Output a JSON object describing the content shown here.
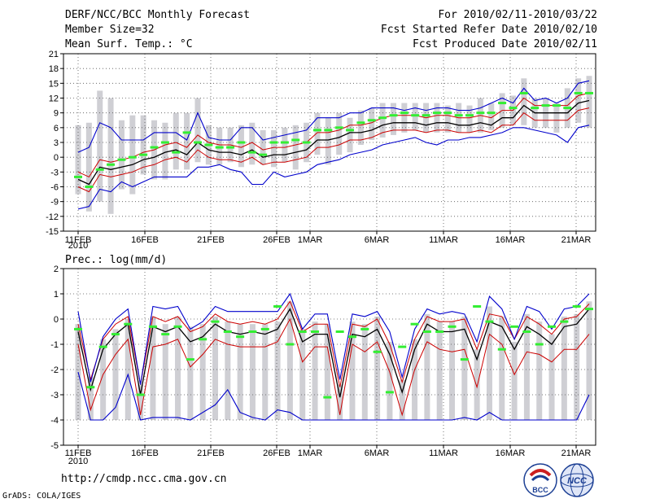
{
  "header": {
    "title": "DERF/NCC/BCC Monthly Forecast",
    "member_size": "Member Size=32",
    "variable": "Mean Surf. Temp.: °C",
    "period": "For 2010/02/11-2010/03/22",
    "refer_date": "Fcst Started Refer Date 2010/02/10",
    "produced_date": "Fcst Produced Date 2010/02/11"
  },
  "footer": {
    "url": "http://cmdp.ncc.cma.gov.cn",
    "credit": "GrADS: COLA/IGES",
    "logo_left_text": "BCC",
    "logo_right_text": "NCC"
  },
  "colors": {
    "box": "#cfcfd4",
    "mean": "#000000",
    "band": "#cc0000",
    "envelope": "#0000cc",
    "marker": "#33ee33",
    "grid": "#555555"
  },
  "chart_data": [
    {
      "type": "line",
      "title": "Mean Surf. Temp.: °C",
      "x_labels": [
        "11FEB",
        "16FEB",
        "21FEB",
        "26FEB",
        "1MAR",
        "6MAR",
        "11MAR",
        "16MAR",
        "21MAR"
      ],
      "x_year_label": "2010",
      "ylim": [
        -15,
        21
      ],
      "yticks": [
        -15,
        -12,
        -9,
        -6,
        -3,
        0,
        3,
        6,
        9,
        12,
        15,
        18,
        21
      ],
      "series": [
        {
          "name": "ensemble mean",
          "values": [
            -4.5,
            -5.5,
            -2,
            -2.5,
            -2,
            -1.5,
            -0.5,
            0,
            1,
            1.5,
            0.5,
            3,
            1.5,
            1,
            1,
            0.5,
            1.5,
            0,
            0.5,
            0.5,
            1,
            1.5,
            3.5,
            3.5,
            4,
            5,
            5,
            5.5,
            6.5,
            7,
            7,
            7,
            6.5,
            7,
            7,
            6.5,
            6.5,
            7,
            6.5,
            8,
            8,
            10.5,
            9,
            9,
            9,
            9,
            11,
            11.5
          ]
        },
        {
          "name": "mean + spread",
          "values": [
            -3,
            -4,
            -0.5,
            -1,
            -0.5,
            0,
            1,
            1.5,
            2.5,
            3,
            2,
            4.5,
            3,
            2.5,
            2.5,
            2,
            3,
            1.5,
            2,
            2,
            2.5,
            3,
            5,
            5,
            5.5,
            6.5,
            6.5,
            7,
            8,
            8.5,
            8.5,
            8.5,
            8,
            8.5,
            8.5,
            8,
            8,
            8.5,
            8,
            9.5,
            9.5,
            12,
            10.5,
            10.5,
            10.5,
            10.5,
            12.5,
            13
          ]
        },
        {
          "name": "mean - spread",
          "values": [
            -6,
            -7,
            -3.5,
            -4,
            -3.5,
            -3,
            -2,
            -1.5,
            -0.5,
            0,
            -1,
            1.5,
            0,
            -0.5,
            -0.5,
            -1,
            0,
            -1.5,
            -1,
            -1,
            -0.5,
            0,
            2,
            2,
            2.5,
            3.5,
            3.5,
            4,
            5,
            5.5,
            5.5,
            5.5,
            5,
            5.5,
            5.5,
            5,
            5,
            5.5,
            5,
            6.5,
            6.5,
            9,
            7.5,
            7.5,
            7.5,
            7.5,
            9.5,
            10
          ]
        },
        {
          "name": "ensemble max",
          "values": [
            1,
            2,
            7,
            6,
            3.5,
            3.5,
            3.5,
            5,
            5,
            5,
            3.5,
            9,
            4,
            3.5,
            3.5,
            6,
            6,
            3.5,
            4,
            4.5,
            5,
            5.5,
            8,
            8,
            8,
            9,
            9,
            10,
            10,
            10,
            9.5,
            10,
            9.5,
            10,
            10,
            9.5,
            9.5,
            10,
            11,
            12,
            11,
            14,
            11.5,
            12,
            11,
            12,
            15,
            15.5
          ]
        },
        {
          "name": "ensemble min",
          "values": [
            -10.5,
            -10,
            -6.5,
            -7,
            -5,
            -6,
            -5,
            -4,
            -4,
            -4,
            -4,
            -2,
            -2,
            -1.5,
            -2.5,
            -3,
            -5.5,
            -5.5,
            -3,
            -4,
            -3.5,
            -3,
            -1.5,
            -1,
            -0.5,
            0.5,
            1,
            1.5,
            2.5,
            3,
            3.5,
            4,
            3,
            2.5,
            3.5,
            3.5,
            4,
            4,
            4.5,
            5,
            6,
            6,
            5.5,
            5,
            4.5,
            3,
            6,
            6.5
          ]
        },
        {
          "name": "box top",
          "values": [
            6.5,
            7,
            13.5,
            12,
            7.5,
            8.5,
            8.5,
            7.5,
            7,
            9,
            9,
            12,
            6.5,
            6,
            6,
            6.5,
            7,
            5.5,
            5.5,
            6,
            6.5,
            7,
            9,
            8,
            9,
            8,
            9.5,
            10,
            11,
            11,
            11,
            11,
            11,
            11,
            10.5,
            11,
            10.5,
            12,
            11,
            13,
            12.5,
            16,
            12,
            12,
            11,
            14,
            16,
            16.5
          ]
        },
        {
          "name": "box bottom",
          "values": [
            -7.5,
            -11,
            -9,
            -11.5,
            -6.5,
            -7.5,
            -3.5,
            -4.5,
            -4.5,
            -2.5,
            -2.5,
            -1,
            -1.5,
            -1.5,
            -1,
            -2,
            -1.5,
            -1.5,
            -2,
            -1,
            -2.5,
            -1,
            0.5,
            -1.5,
            0.5,
            1,
            2.5,
            3.5,
            4,
            4.5,
            5,
            5.5,
            5,
            5,
            5,
            5,
            5,
            5,
            5.5,
            6,
            6.5,
            6.5,
            6,
            6,
            5,
            6,
            7,
            6
          ]
        },
        {
          "name": "observed/median marker",
          "values": [
            -4,
            -6,
            -2.5,
            -1.5,
            -0.5,
            0,
            0.5,
            2,
            3,
            1,
            5,
            3,
            2.5,
            2,
            2,
            3,
            1,
            0.5,
            3,
            3,
            3.5,
            3,
            5.5,
            5.5,
            6,
            5.5,
            7,
            7.5,
            8,
            8.5,
            9,
            8.5,
            8.5,
            9,
            9,
            8.5,
            8.5,
            9,
            9,
            11,
            10,
            13,
            10,
            10.5,
            10.5,
            10,
            13,
            13
          ]
        }
      ]
    },
    {
      "type": "line",
      "title": "Prec.: log(mm/d)",
      "x_labels": [
        "11FEB",
        "16FEB",
        "21FEB",
        "26FEB",
        "1MAR",
        "6MAR",
        "11MAR",
        "16MAR",
        "21MAR"
      ],
      "x_year_label": "2010",
      "ylim": [
        -5,
        2
      ],
      "yticks": [
        -5,
        -4,
        -3,
        -2,
        -1,
        0,
        1,
        2
      ],
      "series": [
        {
          "name": "ensemble mean",
          "values": [
            -0.5,
            -2.8,
            -1.2,
            -0.6,
            -0.2,
            -3.0,
            -0.3,
            -0.5,
            -0.3,
            -0.9,
            -0.7,
            -0.2,
            -0.5,
            -0.6,
            -0.5,
            -0.6,
            -0.4,
            0.4,
            -0.9,
            -0.6,
            -0.6,
            -3.1,
            -0.6,
            -0.7,
            -0.4,
            -1.4,
            -2.9,
            -1.2,
            -0.2,
            -0.5,
            -0.5,
            -0.4,
            -1.6,
            -0.1,
            -0.3,
            -1.2,
            -0.3,
            -0.6,
            -1.0,
            -0.3,
            -0.2,
            0.4
          ]
        },
        {
          "name": "mean + spread",
          "values": [
            -0.2,
            -2.4,
            -0.8,
            -0.2,
            0.1,
            -2.6,
            0.1,
            -0.1,
            0.1,
            -0.5,
            -0.3,
            0.2,
            -0.1,
            -0.2,
            -0.1,
            -0.2,
            0,
            0.7,
            -0.5,
            -0.2,
            -0.2,
            -2.7,
            -0.2,
            -0.3,
            0,
            -1.0,
            -2.5,
            -0.8,
            0.1,
            -0.1,
            -0.1,
            0,
            -1.2,
            0.2,
            0.1,
            -0.8,
            0.1,
            -0.2,
            -0.6,
            0,
            0.1,
            0.6
          ]
        },
        {
          "name": "mean - spread",
          "values": [
            -1,
            -3.6,
            -2.2,
            -1.4,
            -0.8,
            -3.8,
            -1.1,
            -1.0,
            -0.8,
            -1.9,
            -1.4,
            -0.8,
            -1.0,
            -1.1,
            -1.1,
            -1.1,
            -0.9,
            0,
            -1.7,
            -1.1,
            -1.1,
            -3.8,
            -1.0,
            -1.3,
            -0.9,
            -2.1,
            -3.8,
            -2.0,
            -0.9,
            -1.2,
            -1.3,
            -1.2,
            -2.7,
            -0.6,
            -1.0,
            -2.2,
            -1.3,
            -1.4,
            -1.7,
            -1.2,
            -1.2,
            -0.6
          ]
        },
        {
          "name": "ensemble max",
          "values": [
            0.3,
            -2.5,
            -0.7,
            0,
            0.4,
            -2.6,
            0.5,
            0.4,
            0.5,
            -0.4,
            -0.1,
            0.5,
            0.3,
            0.3,
            0.3,
            0.3,
            0.3,
            1.0,
            -0.4,
            0.2,
            0.2,
            -2.4,
            0.2,
            0.1,
            0.3,
            -0.5,
            -2.3,
            -0.4,
            0.4,
            0.2,
            0.3,
            0.2,
            -0.9,
            0.9,
            0.4,
            -0.8,
            0.5,
            0.3,
            -0.4,
            0.4,
            0.5,
            1.0
          ]
        },
        {
          "name": "ensemble min",
          "values": [
            -2.1,
            -4,
            -4,
            -3.5,
            -2.2,
            -4,
            -3.9,
            -3.9,
            -3.9,
            -4,
            -3.7,
            -3.4,
            -2.8,
            -3.7,
            -3.9,
            -4,
            -3.6,
            -3.7,
            -4,
            -4,
            -4,
            -4,
            -4,
            -4,
            -4,
            -4,
            -4,
            -4,
            -4,
            -4,
            -4,
            -3.9,
            -4,
            -3.7,
            -4,
            -4,
            -4,
            -4,
            -4,
            -4,
            -4,
            -3.0
          ]
        },
        {
          "name": "box top",
          "values": [
            -0.2,
            -2.3,
            -0.8,
            -0.4,
            0,
            -2.6,
            0.1,
            -0.2,
            0.1,
            -0.3,
            -0.2,
            0.1,
            -0.1,
            -0.2,
            -0.2,
            -0.2,
            -0.1,
            0.7,
            -0.4,
            -0.1,
            -0.2,
            -2.6,
            -0.1,
            -0.2,
            0.1,
            -0.9,
            -2.4,
            -0.8,
            0.2,
            -0.1,
            -0.1,
            0.1,
            -1.2,
            0.5,
            0.1,
            -0.9,
            0.2,
            -0.1,
            -0.6,
            0.1,
            0.2,
            0.7
          ]
        },
        {
          "name": "box bottom",
          "values": [
            -4,
            -4,
            -4,
            -4,
            -4,
            -4,
            -4,
            -4,
            -4,
            -4,
            -4,
            -4,
            -4,
            -4,
            -4,
            -4,
            -4,
            -4,
            -4,
            -4,
            -4,
            -4,
            -4,
            -4,
            -4,
            -4,
            -4,
            -4,
            -4,
            -4,
            -4,
            -4,
            -4,
            -4,
            -4,
            -4,
            -4,
            -4,
            -4,
            -4,
            -4,
            -4
          ]
        },
        {
          "name": "observed/median marker",
          "values": [
            -0.4,
            -2.7,
            -1.1,
            -0.6,
            -0.2,
            -3.0,
            -0.3,
            -0.6,
            -0.3,
            -1.6,
            -0.8,
            -0.1,
            -0.5,
            -0.7,
            -0.5,
            -0.4,
            0.5,
            -1.0,
            -0.5,
            -0.5,
            -3.1,
            -0.5,
            -0.7,
            -0.4,
            -1.3,
            -2.9,
            -1.1,
            -0.2,
            -0.5,
            -0.5,
            -0.3,
            -1.6,
            0.5,
            -0.1,
            -1.2,
            -0.3,
            -0.5,
            -1.0,
            -0.3,
            -0.1,
            0.5,
            0.4
          ]
        }
      ]
    }
  ]
}
